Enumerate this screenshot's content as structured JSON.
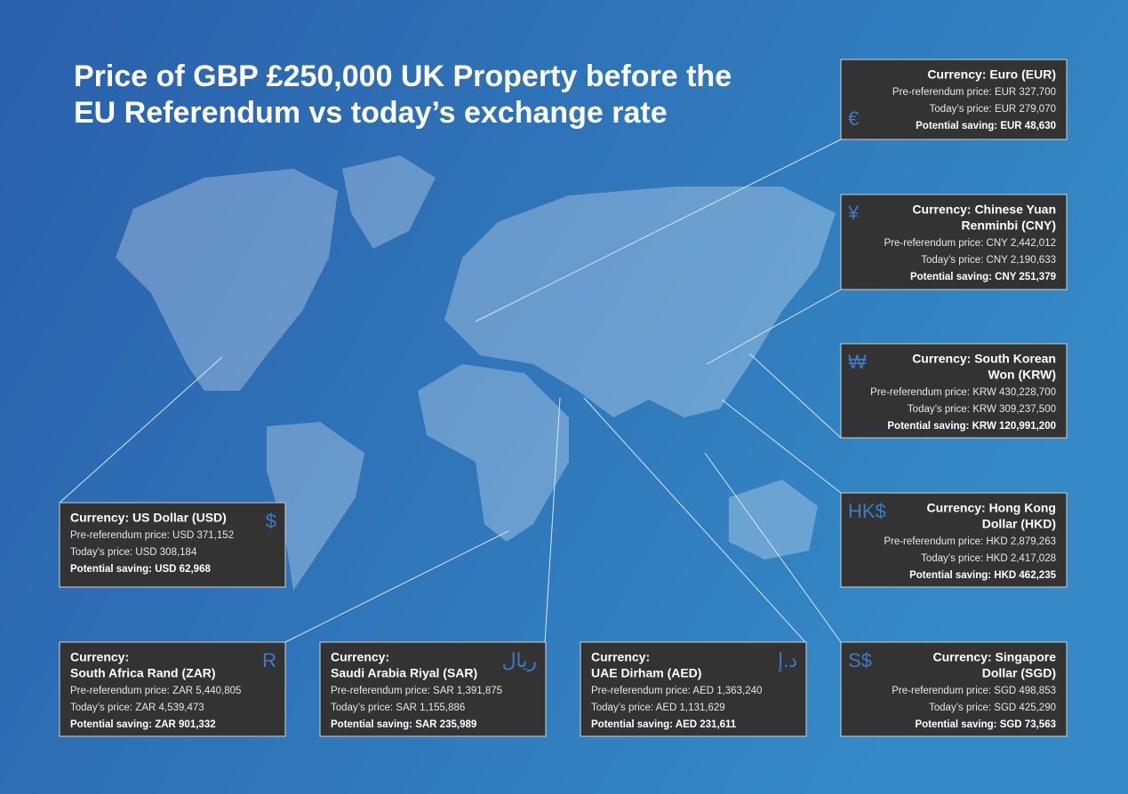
{
  "title": [
    "Price of GBP £250,000 UK Property before the",
    "EU Referendum vs today’s exchange rate"
  ],
  "cards": [
    {
      "heading": [
        "Currency: Euro (EUR)"
      ],
      "symbol": "€",
      "pre": "Pre-referendum price: EUR 327,700",
      "today": "Today’s price: EUR 279,070",
      "saving": "Potential saving: EUR 48,630"
    },
    {
      "heading": [
        "Currency: Chinese Yuan",
        "Renminbi (CNY)"
      ],
      "symbol": "¥",
      "pre": "Pre-referendum price: CNY 2,442,012",
      "today": "Today’s price: CNY 2,190,633",
      "saving": "Potential saving: CNY 251,379"
    },
    {
      "heading": [
        "Currency: South Korean",
        "Won (KRW)"
      ],
      "symbol": "₩",
      "pre": "Pre-referendum price: KRW 430,228,700",
      "today": "Today’s price: KRW 309,237,500",
      "saving": "Potential saving: KRW 120,991,200"
    },
    {
      "heading": [
        "Currency: Hong Kong",
        "Dollar (HKD)"
      ],
      "symbol": "HK$",
      "pre": "Pre-referendum price: HKD 2,879,263",
      "today": "Today’s price: HKD 2,417,028",
      "saving": "Potential saving: HKD 462,235"
    },
    {
      "heading": [
        "Currency: Singapore",
        "Dollar (SGD)"
      ],
      "symbol": "S$",
      "pre": "Pre-referendum price: SGD 498,853",
      "today": "Today’s price: SGD 425,290",
      "saving": "Potential saving: SGD 73,563"
    },
    {
      "heading": [
        "Currency: US Dollar (USD)"
      ],
      "symbol": "$",
      "pre": "Pre-referendum price: USD 371,152",
      "today": "Today’s price: USD 308,184",
      "saving": "Potential saving: USD 62,968"
    },
    {
      "heading": [
        "Currency:",
        "South Africa Rand (ZAR)"
      ],
      "symbol": "R",
      "pre": "Pre-referendum price: ZAR 5,440,805",
      "today": "Today’s price: ZAR 4,539,473",
      "saving": "Potential saving: ZAR 901,332"
    },
    {
      "heading": [
        "Currency:",
        "Saudi Arabia Riyal (SAR)"
      ],
      "symbol": "ريال",
      "pre": "Pre-referendum price: SAR 1,391,875",
      "today": "Today’s price: SAR 1,155,886",
      "saving": "Potential saving: SAR 235,989"
    },
    {
      "heading": [
        "Currency:",
        "UAE Dirham (AED)"
      ],
      "symbol": "د.إ",
      "pre": "Pre-referendum price: AED 1,363,240",
      "today": "Today’s price: AED 1,131,629",
      "saving": "Potential saving: AED 231,611"
    }
  ]
}
